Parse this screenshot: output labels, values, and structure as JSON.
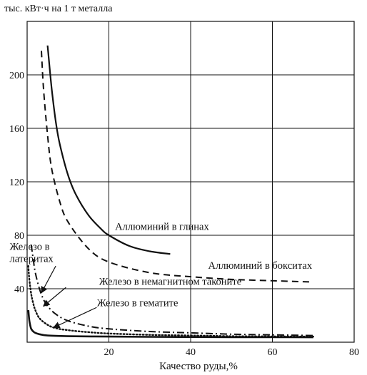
{
  "chart_data": {
    "type": "line",
    "ylabel": "тыс. кВт·ч на 1 т металла",
    "xlabel": "Качество руды,%",
    "xlim": [
      0,
      80
    ],
    "ylim": [
      0,
      240
    ],
    "grid": true,
    "x_ticks": [
      {
        "value": 20,
        "label": "20"
      },
      {
        "value": 40,
        "label": "40"
      },
      {
        "value": 60,
        "label": "60"
      },
      {
        "value": 80,
        "label": "80"
      }
    ],
    "y_ticks": [
      {
        "value": 40,
        "label": "40"
      },
      {
        "value": 80,
        "label": "80"
      },
      {
        "value": 120,
        "label": "120"
      },
      {
        "value": 160,
        "label": "160"
      },
      {
        "value": 200,
        "label": "200"
      }
    ],
    "series": [
      {
        "name": "Аллюминий в глинах",
        "style": "solid",
        "x": [
          5,
          6,
          7,
          8,
          10,
          12,
          15,
          18,
          20,
          25,
          30,
          35
        ],
        "y": [
          222,
          190,
          165,
          148,
          125,
          110,
          95,
          85,
          80,
          72,
          68,
          66
        ],
        "label_x": 33,
        "label_y": 84
      },
      {
        "name": "Аллюминий в бокситах",
        "style": "dashed",
        "x": [
          3.5,
          4,
          5,
          6,
          8,
          10,
          15,
          20,
          30,
          40,
          50,
          60,
          70
        ],
        "y": [
          218,
          190,
          155,
          130,
          105,
          90,
          70,
          60,
          52,
          49,
          47,
          46,
          45
        ],
        "label_x": 57,
        "label_y": 55
      },
      {
        "name_lines": [
          "Железо в",
          "латеритах"
        ],
        "name": "Железо в латеритах",
        "style": "dashdot",
        "x": [
          1,
          1.5,
          2,
          3,
          4,
          5,
          7,
          10,
          15,
          20,
          30,
          40,
          50,
          60,
          70
        ],
        "y": [
          73,
          62,
          52,
          40,
          32,
          27,
          21,
          16,
          12,
          10,
          8,
          7,
          6,
          5.5,
          5
        ],
        "label_x": 9,
        "label_y": 69
      },
      {
        "name": "Железо в немагнитном таконите",
        "style": "dotted",
        "x": [
          0.3,
          0.5,
          1,
          1.5,
          2,
          3,
          5,
          7,
          10,
          15,
          20,
          30,
          40,
          50,
          60,
          70
        ],
        "y": [
          57,
          48,
          36,
          29,
          24,
          18,
          13,
          10.5,
          9,
          7.5,
          6.5,
          5.5,
          5,
          4.5,
          4.3,
          4.2
        ],
        "label_x": 35,
        "label_y": 43
      },
      {
        "name": "Железо в гематите",
        "style": "solid",
        "x": [
          0.3,
          0.5,
          0.8,
          1,
          1.5,
          2,
          3,
          5,
          10,
          20,
          30,
          40,
          50,
          60,
          70
        ],
        "y": [
          24,
          17,
          12,
          10,
          8,
          7,
          6,
          5,
          4.5,
          4.2,
          4,
          3.9,
          3.8,
          3.8,
          3.7
        ],
        "label_x": 27,
        "label_y": 27
      }
    ],
    "annotation_pointers": [
      {
        "series": "Железо в латеритах",
        "from_x": 7,
        "from_y": 57,
        "to_x": 3.5,
        "to_y": 37
      },
      {
        "series": "Железо в немагнитном таконите",
        "from_x": 9.5,
        "from_y": 41,
        "to_x": 4,
        "to_y": 27
      },
      {
        "series": "Железо в гематите",
        "from_x": 17,
        "from_y": 26,
        "to_x": 6.5,
        "to_y": 11
      }
    ]
  }
}
